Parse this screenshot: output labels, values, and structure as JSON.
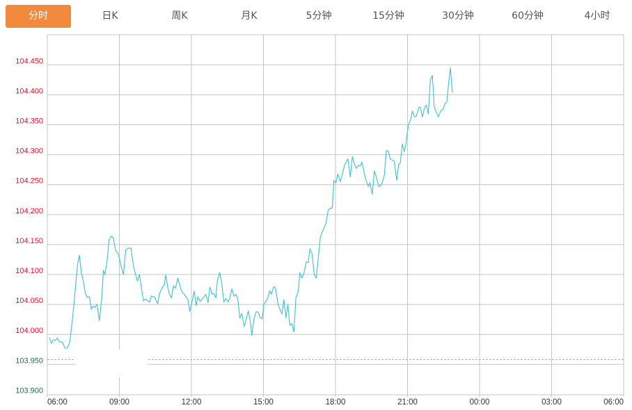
{
  "tabs": [
    "分时",
    "日K",
    "周K",
    "月K",
    "5分钟",
    "15分钟",
    "30分钟",
    "60分钟",
    "4小时"
  ],
  "active_tab": 0,
  "colors": {
    "accent": "#f28a3e",
    "line": "#3bbfd6",
    "up_label": "#e8102a",
    "down_label": "#1f6e54",
    "grid": "#c4c4c4",
    "ref_line": "#f07a3a"
  },
  "chart_data": {
    "type": "line",
    "title": "",
    "xlabel": "",
    "ylabel": "",
    "x_ticks": [
      "06:00",
      "09:00",
      "12:00",
      "15:00",
      "18:00",
      "21:00",
      "00:00",
      "03:00",
      "06:00"
    ],
    "x_range_hours": [
      0,
      24
    ],
    "y_ticks": [
      "104.450",
      "104.400",
      "104.350",
      "104.300",
      "104.250",
      "104.200",
      "104.150",
      "104.100",
      "104.050",
      "104.000",
      "103.950",
      "103.900"
    ],
    "ylim": [
      103.9,
      104.45
    ],
    "reference_value": 103.958,
    "grid": true,
    "series": [
      {
        "name": "price",
        "minutes_since_0600": [
          5,
          10,
          15,
          20,
          25,
          30,
          38,
          44,
          50,
          56,
          61,
          67,
          72,
          76,
          80,
          85,
          90,
          95,
          100,
          105,
          110,
          114,
          119,
          124,
          130,
          136,
          140,
          144,
          150,
          154,
          160,
          165,
          170,
          177,
          184,
          190,
          196,
          202,
          209,
          216,
          225,
          230,
          240,
          245,
          256,
          260,
          268,
          276,
          280,
          287,
          292,
          296,
          301,
          305,
          310,
          315,
          320,
          326,
          336,
          341,
          347,
          351,
          356,
          363,
          367,
          372,
          376,
          382,
          392,
          396,
          402,
          406,
          412,
          416,
          421,
          425,
          431,
          436,
          441,
          446,
          452,
          456,
          461,
          466,
          471,
          476,
          481,
          486,
          492,
          502,
          507,
          511,
          516,
          522,
          527,
          532,
          537,
          541,
          546,
          551,
          556,
          560,
          566,
          570,
          577,
          586,
          591,
          596,
          601,
          606,
          611,
          616,
          621,
          627,
          631,
          636,
          641,
          647,
          652,
          656,
          661,
          667,
          672,
          682,
          687,
          696,
          702,
          708,
          712,
          716,
          721,
          726,
          732,
          743,
          751,
          757,
          762,
          767,
          772,
          777,
          782,
          786,
          792,
          796,
          802,
          806,
          812,
          817,
          822,
          828,
          832,
          837,
          842,
          847,
          852,
          857,
          863,
          867,
          873,
          878,
          882,
          887,
          892,
          896,
          902,
          908,
          912,
          918,
          922,
          928,
          932,
          937,
          943,
          947,
          952,
          957,
          962,
          967,
          977,
          983,
          989,
          994,
          998,
          1002,
          1007,
          1012
        ],
        "values": [
          103.995,
          103.985,
          103.991,
          103.99,
          103.994,
          103.988,
          103.987,
          103.977,
          103.977,
          103.987,
          104.015,
          104.053,
          104.092,
          104.119,
          104.132,
          104.103,
          104.088,
          104.068,
          104.062,
          104.063,
          104.042,
          104.047,
          104.045,
          104.05,
          104.023,
          104.061,
          104.107,
          104.1,
          104.127,
          104.158,
          104.164,
          104.161,
          104.141,
          104.135,
          104.115,
          104.1,
          104.141,
          104.144,
          104.144,
          104.111,
          104.089,
          104.1,
          104.056,
          104.059,
          104.054,
          104.064,
          104.062,
          104.051,
          104.068,
          104.078,
          104.082,
          104.099,
          104.078,
          104.067,
          104.061,
          104.081,
          104.077,
          104.094,
          104.071,
          104.068,
          104.062,
          104.059,
          104.038,
          104.059,
          104.072,
          104.048,
          104.063,
          104.055,
          104.063,
          104.067,
          104.053,
          104.079,
          104.067,
          104.068,
          104.061,
          104.091,
          104.103,
          104.084,
          104.054,
          104.06,
          104.054,
          104.061,
          104.076,
          104.064,
          104.067,
          104.059,
          104.027,
          104.035,
          104.013,
          104.039,
          104.023,
          103.998,
          104.025,
          104.038,
          104.037,
          104.028,
          104.026,
          104.051,
          104.054,
          104.062,
          104.073,
          104.067,
          104.08,
          104.077,
          104.049,
          104.034,
          104.058,
          104.028,
          104.05,
          104.015,
          104.018,
          104.004,
          104.061,
          104.072,
          104.103,
          104.094,
          104.102,
          104.121,
          104.12,
          104.143,
          104.136,
          104.1,
          104.094,
          104.162,
          104.171,
          104.185,
          104.208,
          104.211,
          104.211,
          104.257,
          104.253,
          104.268,
          104.255,
          104.283,
          104.293,
          104.263,
          104.297,
          104.285,
          104.277,
          104.282,
          104.281,
          104.288,
          104.269,
          104.258,
          104.247,
          104.253,
          104.234,
          104.273,
          104.263,
          104.247,
          104.248,
          104.253,
          104.266,
          104.307,
          104.306,
          104.292,
          104.291,
          104.288,
          104.257,
          104.284,
          104.286,
          104.318,
          104.305,
          104.318,
          104.349,
          104.359,
          104.373,
          104.363,
          104.364,
          104.379,
          104.379,
          104.363,
          104.379,
          104.383,
          104.368,
          104.426,
          104.432,
          104.379,
          104.363,
          104.373,
          104.376,
          104.386,
          104.387,
          104.415,
          104.445,
          104.404
        ]
      }
    ]
  }
}
